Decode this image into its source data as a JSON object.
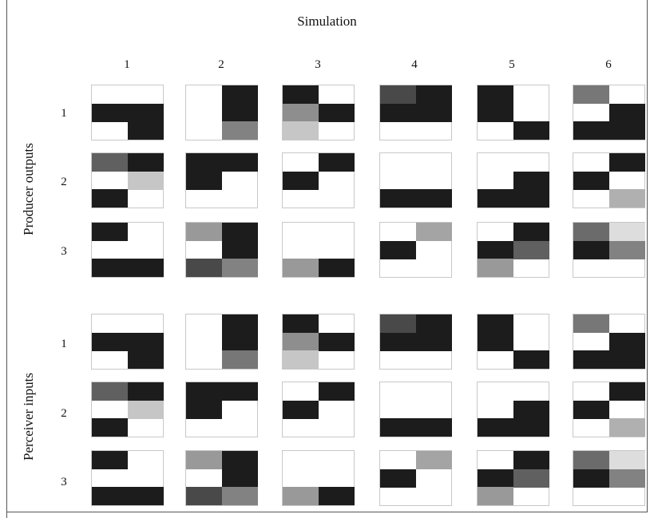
{
  "figure": {
    "title": "Simulation",
    "columns": [
      "1",
      "2",
      "3",
      "4",
      "5",
      "6"
    ],
    "rows": [
      "1",
      "2",
      "3"
    ]
  },
  "groups": [
    {
      "label": "Producer outputs",
      "matrices": [
        [
          [
            [
              0,
              0
            ],
            [
              1,
              1
            ],
            [
              0,
              1
            ]
          ],
          [
            [
              0,
              1
            ],
            [
              0,
              1
            ],
            [
              0,
              0.55
            ]
          ],
          [
            [
              1,
              0
            ],
            [
              0.5,
              1
            ],
            [
              0.25,
              0
            ]
          ],
          [
            [
              0.8,
              1
            ],
            [
              1,
              1
            ],
            [
              0,
              0
            ]
          ],
          [
            [
              1,
              0
            ],
            [
              1,
              0
            ],
            [
              0,
              1
            ]
          ],
          [
            [
              0.6,
              0
            ],
            [
              0,
              1
            ],
            [
              1,
              1
            ]
          ]
        ],
        [
          [
            [
              0.7,
              1
            ],
            [
              0,
              0.25
            ],
            [
              1,
              0
            ]
          ],
          [
            [
              1,
              1
            ],
            [
              1,
              0
            ],
            [
              0,
              0
            ]
          ],
          [
            [
              0,
              1
            ],
            [
              1,
              0
            ],
            [
              0,
              0
            ]
          ],
          [
            [
              0,
              0
            ],
            [
              0,
              0
            ],
            [
              1,
              1
            ]
          ],
          [
            [
              0,
              0
            ],
            [
              0,
              1
            ],
            [
              1,
              1
            ]
          ],
          [
            [
              0,
              1
            ],
            [
              1,
              0
            ],
            [
              0,
              0.35
            ]
          ]
        ],
        [
          [
            [
              1,
              0
            ],
            [
              0,
              0
            ],
            [
              1,
              1
            ]
          ],
          [
            [
              0.45,
              1
            ],
            [
              0,
              1
            ],
            [
              0.8,
              0.55
            ]
          ],
          [
            [
              0,
              0
            ],
            [
              0,
              0
            ],
            [
              0.45,
              1
            ]
          ],
          [
            [
              0,
              0.4
            ],
            [
              1,
              0
            ],
            [
              0,
              0
            ]
          ],
          [
            [
              0,
              1
            ],
            [
              1,
              0.7
            ],
            [
              0.45,
              0
            ]
          ],
          [
            [
              0.65,
              0.15
            ],
            [
              1,
              0.55
            ],
            [
              0,
              0
            ]
          ]
        ]
      ]
    },
    {
      "label": "Perceiver inputs",
      "matrices": [
        [
          [
            [
              0,
              0
            ],
            [
              1,
              1
            ],
            [
              0,
              1
            ]
          ],
          [
            [
              0,
              1
            ],
            [
              0,
              1
            ],
            [
              0,
              0.6
            ]
          ],
          [
            [
              1,
              0
            ],
            [
              0.5,
              1
            ],
            [
              0.25,
              0
            ]
          ],
          [
            [
              0.8,
              1
            ],
            [
              1,
              1
            ],
            [
              0,
              0
            ]
          ],
          [
            [
              1,
              0
            ],
            [
              1,
              0
            ],
            [
              0,
              1
            ]
          ],
          [
            [
              0.6,
              0
            ],
            [
              0,
              1
            ],
            [
              1,
              1
            ]
          ]
        ],
        [
          [
            [
              0.7,
              1
            ],
            [
              0,
              0.25
            ],
            [
              1,
              0
            ]
          ],
          [
            [
              1,
              1
            ],
            [
              1,
              0
            ],
            [
              0,
              0
            ]
          ],
          [
            [
              0,
              1
            ],
            [
              1,
              0
            ],
            [
              0,
              0
            ]
          ],
          [
            [
              0,
              0
            ],
            [
              0,
              0
            ],
            [
              1,
              1
            ]
          ],
          [
            [
              0,
              0
            ],
            [
              0,
              1
            ],
            [
              1,
              1
            ]
          ],
          [
            [
              0,
              1
            ],
            [
              1,
              0
            ],
            [
              0,
              0.35
            ]
          ]
        ],
        [
          [
            [
              1,
              0
            ],
            [
              0,
              0
            ],
            [
              1,
              1
            ]
          ],
          [
            [
              0.45,
              1
            ],
            [
              0,
              1
            ],
            [
              0.8,
              0.55
            ]
          ],
          [
            [
              0,
              0
            ],
            [
              0,
              0
            ],
            [
              0.45,
              1
            ]
          ],
          [
            [
              0,
              0.4
            ],
            [
              1,
              0
            ],
            [
              0,
              0
            ]
          ],
          [
            [
              0,
              1
            ],
            [
              1,
              0.7
            ],
            [
              0.45,
              0
            ]
          ],
          [
            [
              0.65,
              0.15
            ],
            [
              1,
              0.55
            ],
            [
              0,
              0
            ]
          ]
        ]
      ]
    }
  ]
}
